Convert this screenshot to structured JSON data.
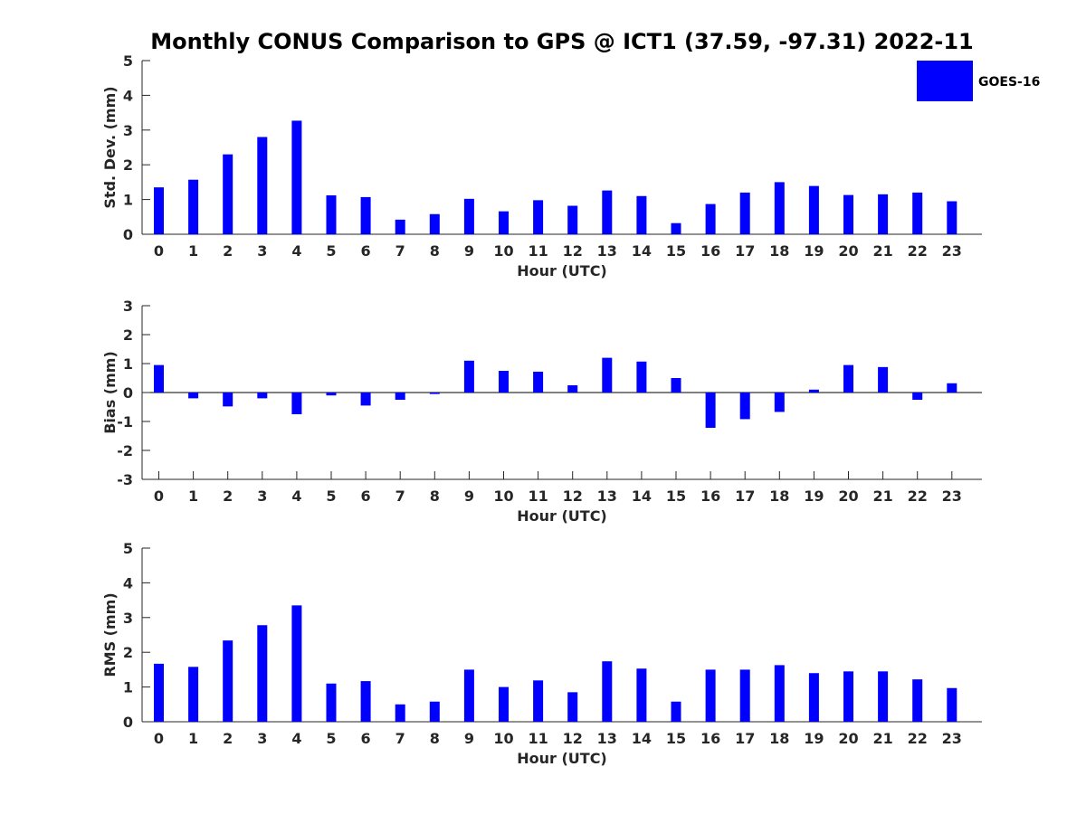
{
  "figure": {
    "title": "Monthly CONUS Comparison to GPS @ ICT1 (37.59, -97.31) 2022-11"
  },
  "legend": {
    "label": "GOES-16",
    "color": "#0000ff",
    "placement": "top-right"
  },
  "chart_data": [
    {
      "type": "bar",
      "xlabel": "Hour (UTC)",
      "ylabel": "Std. Dev. (mm)",
      "color": "#0000ff",
      "categories": [
        "0",
        "1",
        "2",
        "3",
        "4",
        "5",
        "6",
        "7",
        "8",
        "9",
        "10",
        "11",
        "12",
        "13",
        "14",
        "15",
        "16",
        "17",
        "18",
        "19",
        "20",
        "21",
        "22",
        "23"
      ],
      "series": [
        {
          "name": "GOES-16",
          "values": [
            1.35,
            1.57,
            2.3,
            2.8,
            3.27,
            1.12,
            1.07,
            0.42,
            0.58,
            1.02,
            0.66,
            0.98,
            0.82,
            1.26,
            1.1,
            0.32,
            0.87,
            1.2,
            1.5,
            1.39,
            1.13,
            1.15,
            1.2,
            0.95
          ]
        }
      ],
      "ylim": [
        0,
        5
      ],
      "yticks": [
        0,
        1,
        2,
        3,
        4,
        5
      ],
      "grid": false
    },
    {
      "type": "bar",
      "xlabel": "Hour (UTC)",
      "ylabel": "Bias (mm)",
      "color": "#0000ff",
      "categories": [
        "0",
        "1",
        "2",
        "3",
        "4",
        "5",
        "6",
        "7",
        "8",
        "9",
        "10",
        "11",
        "12",
        "13",
        "14",
        "15",
        "16",
        "17",
        "18",
        "19",
        "20",
        "21",
        "22",
        "23"
      ],
      "series": [
        {
          "name": "GOES-16",
          "values": [
            0.95,
            -0.2,
            -0.48,
            -0.2,
            -0.75,
            -0.1,
            -0.45,
            -0.25,
            -0.05,
            1.1,
            0.75,
            0.72,
            0.25,
            1.2,
            1.07,
            0.5,
            -1.22,
            -0.92,
            -0.67,
            0.1,
            0.95,
            0.88,
            -0.25,
            0.32
          ]
        }
      ],
      "ylim": [
        -3,
        3
      ],
      "yticks": [
        -3,
        -2,
        -1,
        0,
        1,
        2,
        3
      ],
      "grid": false
    },
    {
      "type": "bar",
      "xlabel": "Hour (UTC)",
      "ylabel": "RMS (mm)",
      "color": "#0000ff",
      "categories": [
        "0",
        "1",
        "2",
        "3",
        "4",
        "5",
        "6",
        "7",
        "8",
        "9",
        "10",
        "11",
        "12",
        "13",
        "14",
        "15",
        "16",
        "17",
        "18",
        "19",
        "20",
        "21",
        "22",
        "23"
      ],
      "series": [
        {
          "name": "GOES-16",
          "values": [
            1.67,
            1.58,
            2.34,
            2.78,
            3.35,
            1.1,
            1.17,
            0.5,
            0.58,
            1.5,
            1.0,
            1.19,
            0.85,
            1.74,
            1.53,
            0.58,
            1.5,
            1.5,
            1.63,
            1.4,
            1.45,
            1.45,
            1.22,
            0.97
          ]
        }
      ],
      "ylim": [
        0,
        5
      ],
      "yticks": [
        0,
        1,
        2,
        3,
        4,
        5
      ],
      "grid": false
    }
  ]
}
